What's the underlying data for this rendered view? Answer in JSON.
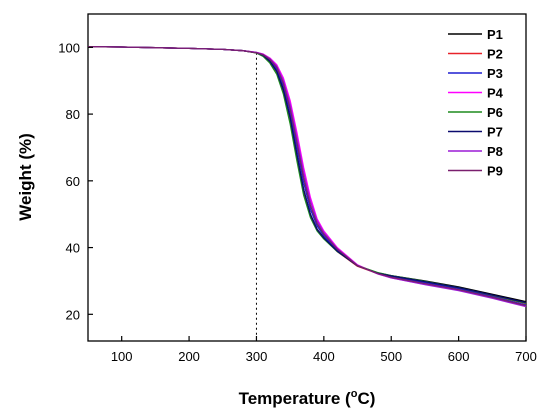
{
  "chart_data": {
    "type": "line",
    "title": "",
    "xlabel": "Temperature (",
    "xlabel_unit": "o",
    "xlabel_suffix": "C)",
    "ylabel": "Weight (%)",
    "xlim": [
      50,
      700
    ],
    "ylim": [
      12,
      110
    ],
    "xticks": [
      100,
      200,
      300,
      400,
      500,
      600,
      700
    ],
    "yticks": [
      20,
      40,
      60,
      80,
      100
    ],
    "grid": false,
    "legend_position": "top-right",
    "annotations": [
      {
        "type": "vertical-dotted-line",
        "x": 300
      }
    ],
    "x": [
      50,
      100,
      150,
      200,
      250,
      280,
      300,
      310,
      320,
      330,
      340,
      350,
      360,
      370,
      380,
      390,
      400,
      420,
      450,
      480,
      500,
      550,
      600,
      650,
      700
    ],
    "series": [
      {
        "name": "P1",
        "color": "#000000",
        "values": [
          100.2,
          100.1,
          99.9,
          99.7,
          99.4,
          99.0,
          98.4,
          97.6,
          95.9,
          93.0,
          87.5,
          79.0,
          68.0,
          57.5,
          50.0,
          45.5,
          43.0,
          39.0,
          34.5,
          32.4,
          31.6,
          30.0,
          28.2,
          26.0,
          23.8
        ]
      },
      {
        "name": "P2",
        "color": "#e8232a",
        "values": [
          100.2,
          100.1,
          99.9,
          99.7,
          99.4,
          99.0,
          98.3,
          97.5,
          95.7,
          92.7,
          87.0,
          78.5,
          67.5,
          57.0,
          49.7,
          45.3,
          42.8,
          38.8,
          34.4,
          32.2,
          31.3,
          29.6,
          27.9,
          25.6,
          23.2
        ]
      },
      {
        "name": "P3",
        "color": "#1f1fd0",
        "values": [
          100.2,
          100.1,
          99.9,
          99.7,
          99.4,
          99.0,
          98.4,
          97.7,
          96.2,
          93.5,
          88.5,
          80.5,
          70.0,
          59.5,
          51.5,
          46.5,
          43.5,
          39.3,
          34.6,
          32.3,
          31.3,
          29.5,
          27.7,
          25.3,
          22.8
        ]
      },
      {
        "name": "P4",
        "color": "#ff00ff",
        "values": [
          100.2,
          100.1,
          99.9,
          99.7,
          99.4,
          99.0,
          98.5,
          98.0,
          96.8,
          94.8,
          90.8,
          84.0,
          74.5,
          64.0,
          55.0,
          48.6,
          45.0,
          40.0,
          34.8,
          32.1,
          30.9,
          29.0,
          27.3,
          25.0,
          22.5
        ]
      },
      {
        "name": "P6",
        "color": "#1e8c1e",
        "values": [
          100.2,
          100.1,
          99.9,
          99.7,
          99.4,
          99.0,
          98.3,
          97.3,
          95.3,
          92.0,
          86.0,
          77.0,
          66.0,
          55.8,
          49.0,
          45.0,
          42.6,
          38.8,
          34.6,
          32.5,
          31.6,
          29.9,
          28.0,
          25.7,
          23.3
        ]
      },
      {
        "name": "P7",
        "color": "#0b0b6e",
        "values": [
          100.2,
          100.1,
          99.9,
          99.7,
          99.4,
          99.0,
          98.4,
          97.6,
          95.8,
          92.8,
          87.2,
          78.8,
          67.8,
          57.3,
          49.9,
          45.4,
          42.9,
          38.9,
          34.5,
          32.3,
          31.5,
          29.8,
          28.0,
          25.8,
          23.5
        ]
      },
      {
        "name": "P8",
        "color": "#9b1bd6",
        "values": [
          100.2,
          100.1,
          99.9,
          99.7,
          99.4,
          99.0,
          98.5,
          97.9,
          96.6,
          94.4,
          90.0,
          82.8,
          73.0,
          62.5,
          53.8,
          48.0,
          44.5,
          39.7,
          34.7,
          32.1,
          30.9,
          28.9,
          27.1,
          24.8,
          22.3
        ]
      },
      {
        "name": "P9",
        "color": "#7a1f6e",
        "values": [
          100.2,
          100.1,
          99.9,
          99.7,
          99.4,
          99.0,
          98.4,
          97.8,
          96.4,
          94.0,
          89.2,
          81.5,
          71.5,
          61.0,
          52.6,
          47.2,
          44.0,
          39.5,
          34.6,
          32.2,
          31.1,
          29.2,
          27.4,
          25.1,
          22.6
        ]
      }
    ]
  }
}
